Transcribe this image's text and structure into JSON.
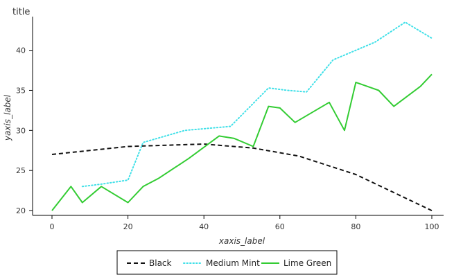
{
  "chart_data": {
    "type": "line",
    "title": "title",
    "xlabel": "xaxis_label",
    "ylabel": "yaxis_label",
    "xlim": [
      0,
      100
    ],
    "ylim": [
      19.4,
      44.2
    ],
    "x_ticks": [
      0,
      20,
      40,
      60,
      80,
      100
    ],
    "y_ticks": [
      20,
      25,
      30,
      35,
      40
    ],
    "grid": false,
    "legend_position": "bottom",
    "series": [
      {
        "name": "Black",
        "color": "#111111",
        "style": "dashed",
        "points": [
          [
            0,
            27.0
          ],
          [
            20,
            28.0
          ],
          [
            40,
            28.3
          ],
          [
            53,
            27.8
          ],
          [
            65,
            26.8
          ],
          [
            80,
            24.5
          ],
          [
            100,
            20.0
          ]
        ]
      },
      {
        "name": "Medium Mint",
        "color": "#40e0e8",
        "style": "dotted",
        "points": [
          [
            8,
            23.0
          ],
          [
            13,
            23.3
          ],
          [
            20,
            23.8
          ],
          [
            24,
            28.5
          ],
          [
            35,
            30.0
          ],
          [
            47,
            30.5
          ],
          [
            57,
            35.3
          ],
          [
            62,
            35.0
          ],
          [
            67,
            34.8
          ],
          [
            74,
            38.8
          ],
          [
            85,
            41.0
          ],
          [
            93,
            43.5
          ],
          [
            100,
            41.5
          ]
        ]
      },
      {
        "name": "Lime Green",
        "color": "#33cc33",
        "style": "solid",
        "points": [
          [
            0,
            20.0
          ],
          [
            5,
            23.0
          ],
          [
            8,
            21.0
          ],
          [
            13,
            23.0
          ],
          [
            20,
            21.0
          ],
          [
            24,
            23.0
          ],
          [
            28,
            24.0
          ],
          [
            36,
            26.5
          ],
          [
            44,
            29.3
          ],
          [
            48,
            29.0
          ],
          [
            53,
            28.0
          ],
          [
            57,
            33.0
          ],
          [
            60,
            32.8
          ],
          [
            64,
            31.0
          ],
          [
            73,
            33.5
          ],
          [
            77,
            30.0
          ],
          [
            80,
            36.0
          ],
          [
            86,
            35.0
          ],
          [
            90,
            33.0
          ],
          [
            97,
            35.5
          ],
          [
            100,
            37.0
          ]
        ]
      }
    ]
  }
}
